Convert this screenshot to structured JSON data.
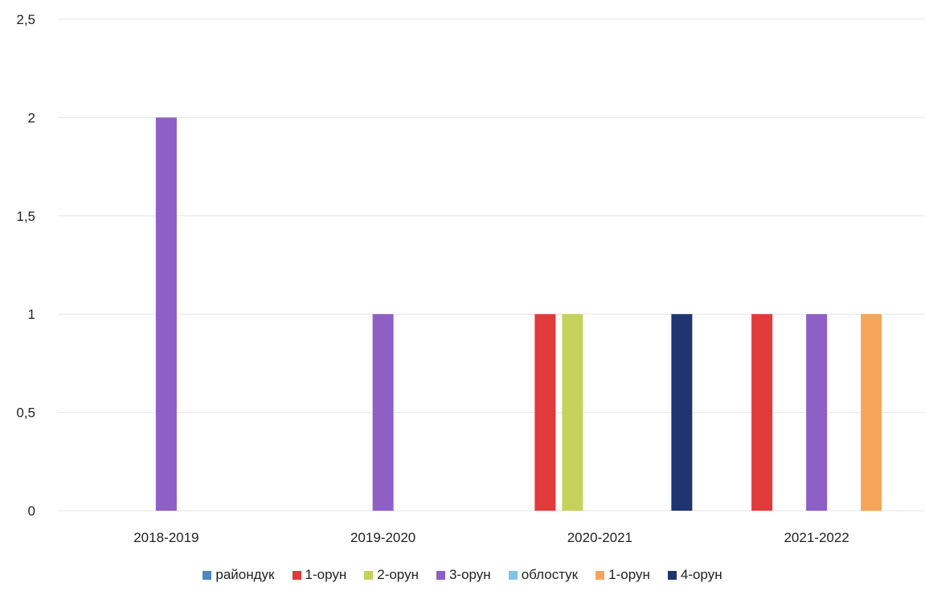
{
  "chart_data": {
    "type": "bar",
    "title": "",
    "xlabel": "",
    "ylabel": "",
    "ylim": [
      0,
      2.5
    ],
    "yticks": [
      {
        "value": 0,
        "label": "0"
      },
      {
        "value": 0.5,
        "label": "0,5"
      },
      {
        "value": 1,
        "label": "1"
      },
      {
        "value": 1.5,
        "label": "1,5"
      },
      {
        "value": 2,
        "label": "2"
      },
      {
        "value": 2.5,
        "label": "2,5"
      }
    ],
    "grid": true,
    "legend_position": "bottom",
    "categories": [
      "2018-2019",
      "2019-2020",
      "2020-2021",
      "2021-2022"
    ],
    "series": [
      {
        "name": "райондук",
        "color": "#4f86c6",
        "values": [
          0,
          0,
          0,
          0
        ]
      },
      {
        "name": "1-орун",
        "color": "#e03a3a",
        "values": [
          0,
          0,
          1,
          1
        ]
      },
      {
        "name": "2-орун",
        "color": "#c5d25a",
        "values": [
          0,
          0,
          1,
          0
        ]
      },
      {
        "name": "3-орун",
        "color": "#8e5fc4",
        "values": [
          2,
          1,
          0,
          1
        ]
      },
      {
        "name": "облостук",
        "color": "#7fc6e6",
        "values": [
          0,
          0,
          0,
          0
        ]
      },
      {
        "name": "1-орун",
        "color": "#f5a55a",
        "values": [
          0,
          0,
          0,
          1
        ]
      },
      {
        "name": "4-орун",
        "color": "#1f3470",
        "values": [
          0,
          0,
          1,
          0
        ]
      }
    ]
  }
}
